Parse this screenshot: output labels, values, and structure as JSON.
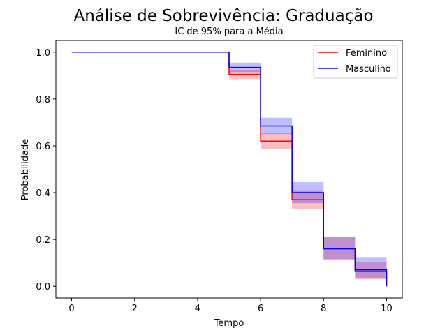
{
  "chart_data": {
    "type": "line",
    "step": true,
    "title": "Análise de Sobrevivência: Graduação",
    "subtitle": "IC de 95% para a Média",
    "xlabel": "Tempo",
    "ylabel": "Probabilidade",
    "xlim": [
      -0.5,
      10.5
    ],
    "ylim": [
      -0.05,
      1.05
    ],
    "xticks": [
      0,
      2,
      4,
      6,
      8,
      10
    ],
    "xtick_labels": [
      "0",
      "2",
      "4",
      "6",
      "8",
      "10"
    ],
    "yticks": [
      0.0,
      0.2,
      0.4,
      0.6,
      0.8,
      1.0
    ],
    "ytick_labels": [
      "0.0",
      "0.2",
      "0.4",
      "0.6",
      "0.8",
      "1.0"
    ],
    "grid": false,
    "legend_position": "top-right",
    "series": [
      {
        "name": "Feminino",
        "color": "#ff0000",
        "x": [
          0,
          5,
          6,
          7,
          8,
          9,
          10
        ],
        "y": [
          1.0,
          0.905,
          0.62,
          0.37,
          0.16,
          0.063,
          0.0
        ],
        "ci_lower": [
          1.0,
          0.885,
          0.585,
          0.33,
          0.115,
          0.03,
          0.0
        ],
        "ci_upper": [
          1.0,
          0.925,
          0.655,
          0.41,
          0.21,
          0.105,
          0.0
        ]
      },
      {
        "name": "Masculino",
        "color": "#0000ff",
        "x": [
          0,
          5,
          6,
          7,
          8,
          9,
          10
        ],
        "y": [
          1.0,
          0.935,
          0.685,
          0.4,
          0.16,
          0.07,
          0.0
        ],
        "ci_lower": [
          1.0,
          0.915,
          0.65,
          0.355,
          0.115,
          0.035,
          0.0
        ],
        "ci_upper": [
          1.0,
          0.955,
          0.72,
          0.445,
          0.21,
          0.125,
          0.0
        ]
      }
    ]
  }
}
